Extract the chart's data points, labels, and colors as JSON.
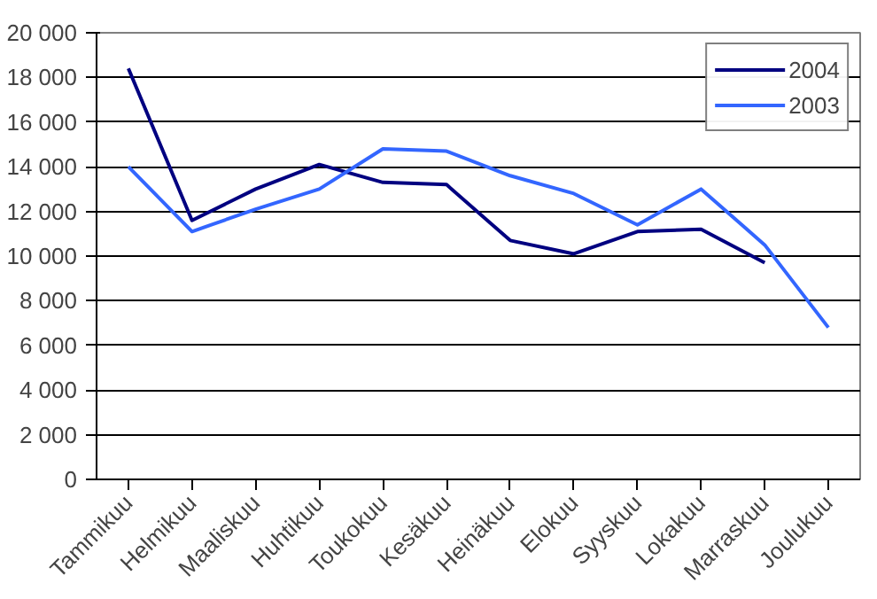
{
  "chart_data": {
    "type": "line",
    "categories": [
      "Tammikuu",
      "Helmikuu",
      "Maaliskuu",
      "Huhtikuu",
      "Toukokuu",
      "Kesäkuu",
      "Heinäkuu",
      "Elokuu",
      "Syyskuu",
      "Lokakuu",
      "Marraskuu",
      "Joulukuu"
    ],
    "series": [
      {
        "name": "2004",
        "color": "#000080",
        "values": [
          18400,
          11600,
          13000,
          14100,
          13300,
          13200,
          10700,
          10100,
          11100,
          11200,
          9700,
          null
        ]
      },
      {
        "name": "2003",
        "color": "#3366ff",
        "values": [
          14000,
          11100,
          12100,
          13000,
          14800,
          14700,
          13600,
          12800,
          11400,
          13000,
          10500,
          6800
        ]
      }
    ],
    "ylim": [
      0,
      20000
    ],
    "yticks": [
      {
        "value": 0,
        "label": "0"
      },
      {
        "value": 2000,
        "label": "2 000"
      },
      {
        "value": 4000,
        "label": "4 000"
      },
      {
        "value": 6000,
        "label": "6 000"
      },
      {
        "value": 8000,
        "label": "8 000"
      },
      {
        "value": 10000,
        "label": "10 000"
      },
      {
        "value": 12000,
        "label": "12 000"
      },
      {
        "value": 14000,
        "label": "14 000"
      },
      {
        "value": 16000,
        "label": "16 000"
      },
      {
        "value": 18000,
        "label": "18 000"
      },
      {
        "value": 20000,
        "label": "20 000"
      }
    ],
    "grid": "y",
    "legend": "top right",
    "marker": "none",
    "line_style": "solid"
  }
}
